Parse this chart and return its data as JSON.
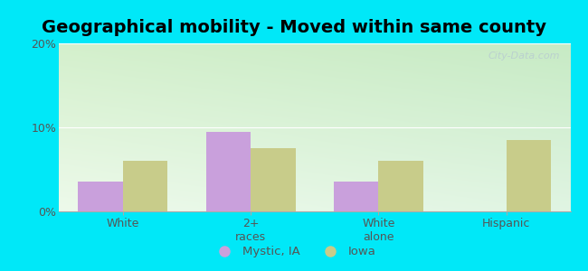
{
  "title": "Geographical mobility - Moved within same county",
  "categories": [
    "White",
    "2+\nraces",
    "White\nalone",
    "Hispanic"
  ],
  "mystic_values": [
    3.5,
    9.5,
    3.5,
    0.0
  ],
  "iowa_values": [
    6.0,
    7.5,
    6.0,
    8.5
  ],
  "mystic_color": "#c9a0dc",
  "iowa_color": "#c8cc8a",
  "ylim": [
    0,
    20
  ],
  "yticks": [
    0,
    10,
    20
  ],
  "ytick_labels": [
    "0%",
    "10%",
    "20%"
  ],
  "grad_color_topleft": "#d4efc8",
  "grad_color_topright": "#c8e8c0",
  "grad_color_bottom": "#e8f8e0",
  "outer_bg": "#00e8f8",
  "legend_mystic": "Mystic, IA",
  "legend_iowa": "Iowa",
  "bar_width": 0.35,
  "title_fontsize": 14,
  "tick_fontsize": 9,
  "watermark": "City-Data.com"
}
